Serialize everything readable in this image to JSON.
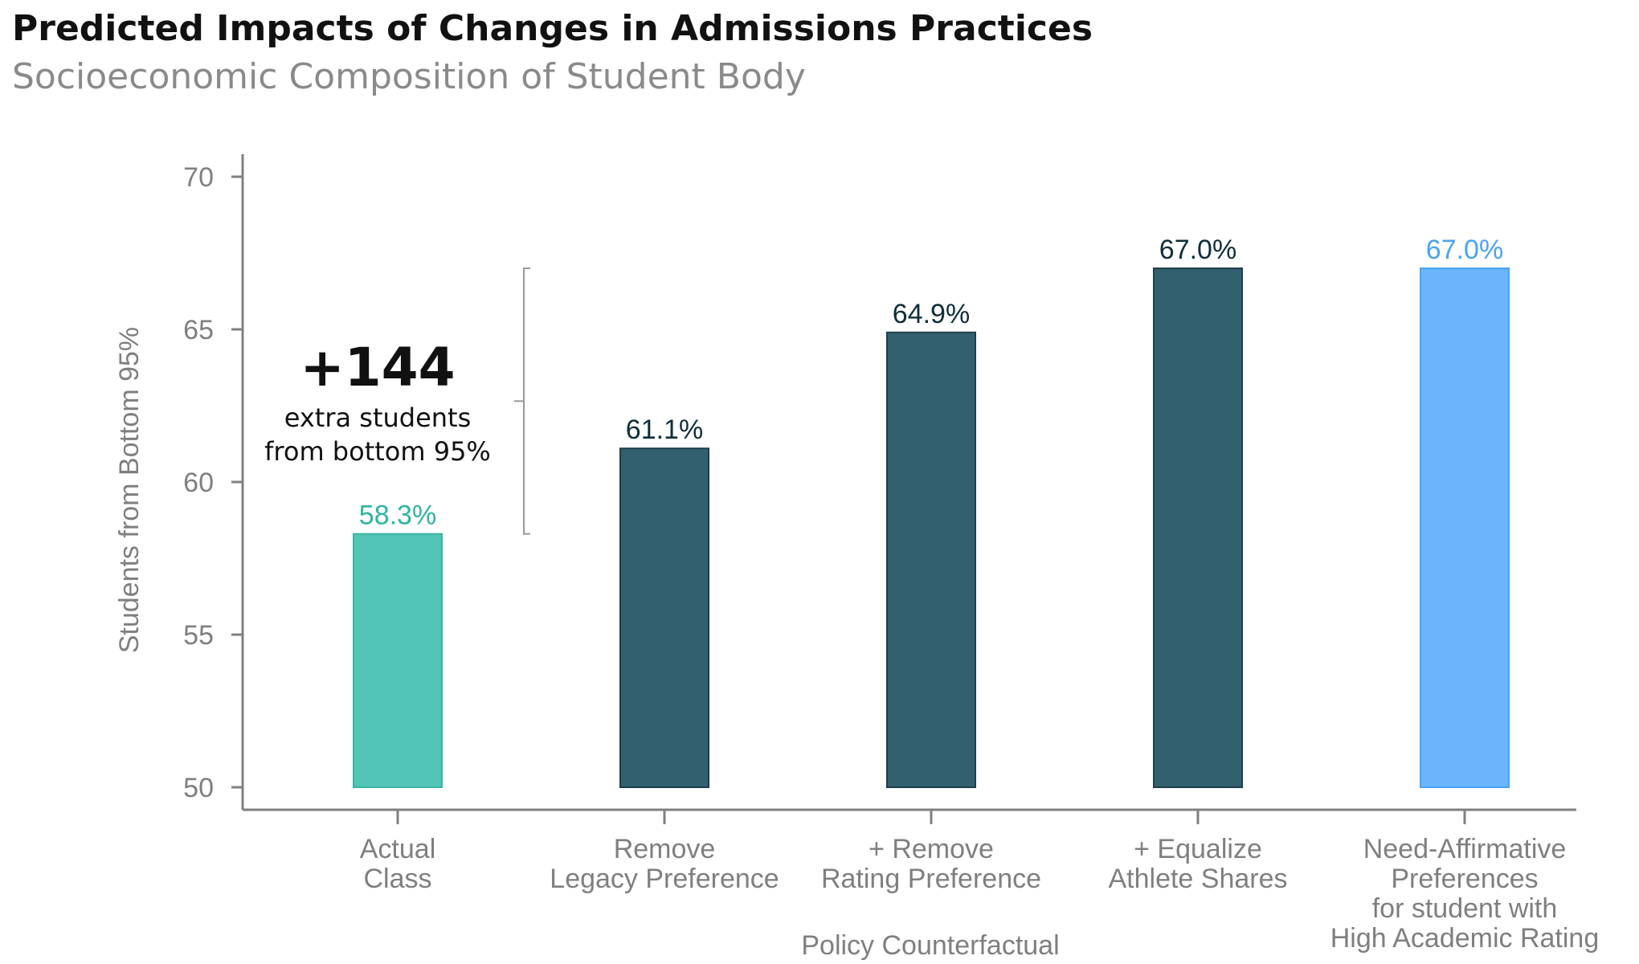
{
  "title": "Predicted Impacts of Changes in Admissions Practices",
  "subtitle": "Socioeconomic Composition of Student Body",
  "chart_data": {
    "type": "bar",
    "categories": [
      [
        "Actual",
        "Class"
      ],
      [
        "Remove",
        "Legacy Preference"
      ],
      [
        "+ Remove",
        "Rating Preference"
      ],
      [
        "+ Equalize",
        "Athlete Shares"
      ],
      [
        "Need-Affirmative",
        "Preferences",
        "for student with",
        "High Academic Rating"
      ]
    ],
    "values": [
      58.3,
      61.1,
      64.9,
      67.0,
      67.0
    ],
    "data_labels": [
      "58.3%",
      "61.1%",
      "64.9%",
      "67.0%",
      "67.0%"
    ],
    "bar_colors": [
      "#52c5b6",
      "#32606f",
      "#32606f",
      "#32606f",
      "#6bb5fd"
    ],
    "bar_stroke_colors": [
      "#3db3a3",
      "#1e3f4b",
      "#1e3f4b",
      "#1e3f4b",
      "#4aa2f5"
    ],
    "label_colors": [
      "#2fb4a2",
      "#0f2e3a",
      "#0f2e3a",
      "#0f2e3a",
      "#4aa3f7"
    ],
    "ylabel": "Students from Bottom 95%",
    "xlabel": "Policy Counterfactual",
    "ylim": [
      50,
      70
    ],
    "yticks": [
      50,
      55,
      60,
      65,
      70
    ],
    "grid": false,
    "annotation": {
      "value": "+144",
      "lines": [
        "extra students",
        "from bottom 95%"
      ],
      "bracket_from": 58.3,
      "bracket_to": 67.0
    }
  }
}
